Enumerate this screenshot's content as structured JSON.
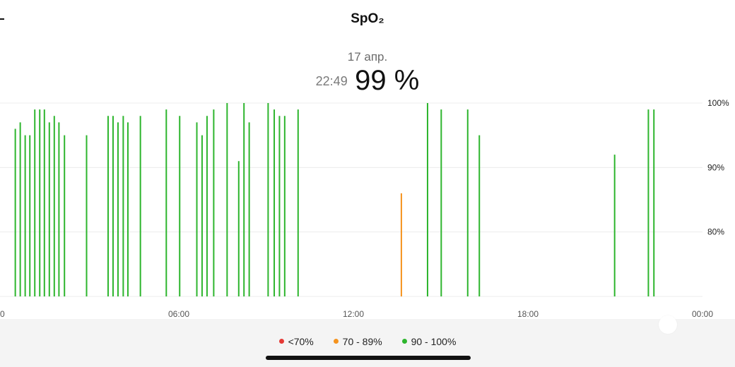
{
  "header": {
    "title": "SpO₂",
    "date": "17 апр.",
    "time": "22:49",
    "value": "99 %"
  },
  "colors": {
    "normal": "#2db52d",
    "moderate": "#f5931e",
    "low": "#e53935",
    "grid": "#ececec",
    "axis_text": "#555555"
  },
  "legend": [
    {
      "label": "<70%",
      "color": "#e53935"
    },
    {
      "label": "70 - 89%",
      "color": "#f5931e"
    },
    {
      "label": "90 - 100%",
      "color": "#2db52d"
    }
  ],
  "chart_data": {
    "type": "bar",
    "title": "",
    "xlabel": "",
    "ylabel": "",
    "x_unit": "hours",
    "xlim": [
      0,
      24
    ],
    "ylim": [
      70,
      100
    ],
    "x_ticks": [
      {
        "x": 0,
        "label": "0"
      },
      {
        "x": 6,
        "label": "06:00"
      },
      {
        "x": 12,
        "label": "12:00"
      },
      {
        "x": 18,
        "label": "18:00"
      },
      {
        "x": 24,
        "label": "00:00"
      }
    ],
    "y_ticks": [
      {
        "y": 100,
        "label": "100%"
      },
      {
        "y": 90,
        "label": "90%"
      },
      {
        "y": 80,
        "label": "80%"
      }
    ],
    "grid": true,
    "points": [
      {
        "t": 0.38,
        "v": 96
      },
      {
        "t": 0.55,
        "v": 97
      },
      {
        "t": 0.72,
        "v": 95
      },
      {
        "t": 0.88,
        "v": 95
      },
      {
        "t": 1.05,
        "v": 99
      },
      {
        "t": 1.22,
        "v": 99
      },
      {
        "t": 1.38,
        "v": 99
      },
      {
        "t": 1.55,
        "v": 97
      },
      {
        "t": 1.72,
        "v": 98
      },
      {
        "t": 1.88,
        "v": 97
      },
      {
        "t": 2.07,
        "v": 95
      },
      {
        "t": 2.83,
        "v": 95
      },
      {
        "t": 3.57,
        "v": 98
      },
      {
        "t": 3.74,
        "v": 98
      },
      {
        "t": 3.91,
        "v": 97
      },
      {
        "t": 4.09,
        "v": 98
      },
      {
        "t": 4.25,
        "v": 97
      },
      {
        "t": 4.68,
        "v": 98
      },
      {
        "t": 5.57,
        "v": 99
      },
      {
        "t": 6.03,
        "v": 98
      },
      {
        "t": 6.62,
        "v": 97
      },
      {
        "t": 6.8,
        "v": 95
      },
      {
        "t": 6.97,
        "v": 98
      },
      {
        "t": 7.2,
        "v": 99
      },
      {
        "t": 7.66,
        "v": 100
      },
      {
        "t": 8.06,
        "v": 91
      },
      {
        "t": 8.24,
        "v": 100
      },
      {
        "t": 8.42,
        "v": 97
      },
      {
        "t": 9.07,
        "v": 100
      },
      {
        "t": 9.28,
        "v": 99
      },
      {
        "t": 9.46,
        "v": 98
      },
      {
        "t": 9.64,
        "v": 98
      },
      {
        "t": 10.1,
        "v": 99
      },
      {
        "t": 13.65,
        "v": 86
      },
      {
        "t": 14.55,
        "v": 100
      },
      {
        "t": 15.02,
        "v": 99
      },
      {
        "t": 15.93,
        "v": 99
      },
      {
        "t": 16.33,
        "v": 95
      },
      {
        "t": 20.98,
        "v": 92
      },
      {
        "t": 22.14,
        "v": 99
      },
      {
        "t": 22.33,
        "v": 99
      }
    ]
  }
}
